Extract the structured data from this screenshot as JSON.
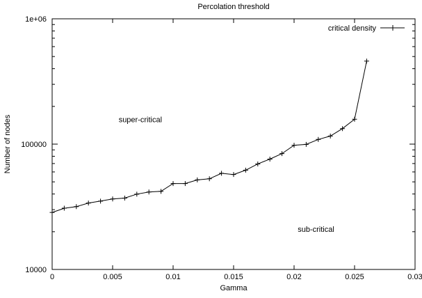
{
  "chart_data": {
    "type": "line",
    "title": "Percolation threshold",
    "xlabel": "Gamma",
    "ylabel": "Number of nodes",
    "xlim": [
      0,
      0.03
    ],
    "ylim": [
      10000,
      1000000
    ],
    "yscale": "log",
    "grid": false,
    "legend_position": "top-right",
    "x_ticks": [
      "0",
      "0.005",
      "0.01",
      "0.015",
      "0.02",
      "0.025",
      "0.03"
    ],
    "y_ticks": [
      "10000",
      "100000",
      "1e+06"
    ],
    "series": [
      {
        "name": "critical density",
        "marker": "plus",
        "color": "#000000",
        "x": [
          0,
          0.001,
          0.002,
          0.003,
          0.004,
          0.005,
          0.006,
          0.007,
          0.008,
          0.009,
          0.01,
          0.011,
          0.012,
          0.013,
          0.014,
          0.015,
          0.016,
          0.017,
          0.018,
          0.019,
          0.02,
          0.021,
          0.022,
          0.023,
          0.024,
          0.025,
          0.026
        ],
        "y": [
          28500,
          30800,
          31700,
          33900,
          35100,
          36500,
          37100,
          39900,
          41500,
          42000,
          48500,
          48500,
          51800,
          52900,
          58500,
          57200,
          62000,
          69500,
          76000,
          84000,
          98000,
          99500,
          109000,
          116000,
          133000,
          158000,
          460000
        ]
      }
    ],
    "annotations": [
      {
        "text": "super-critical",
        "x": 0.0055,
        "y": 150000
      },
      {
        "text": "sub-critical",
        "x": 0.0203,
        "y": 20000
      }
    ]
  }
}
